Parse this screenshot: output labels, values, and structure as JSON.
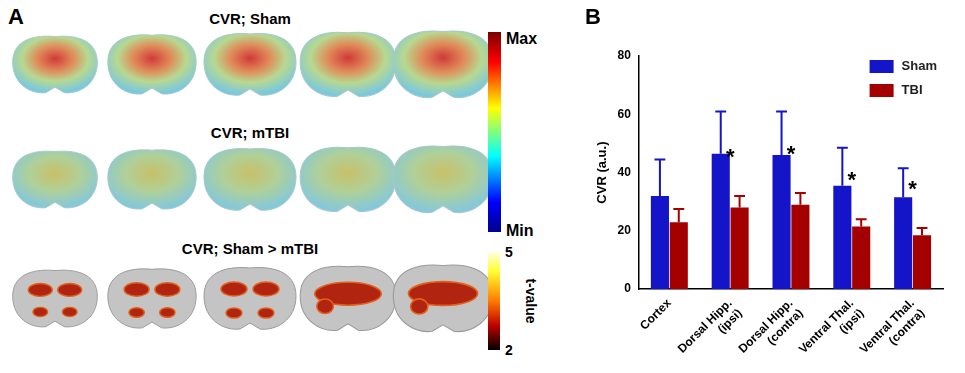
{
  "panel_a": {
    "label": "A",
    "rows": [
      {
        "title": "CVR; Sham"
      },
      {
        "title": "CVR; mTBI"
      },
      {
        "title": "CVR; Sham > mTBI"
      }
    ],
    "colorbar_cvr": {
      "labels": [
        "Max",
        "Min"
      ]
    },
    "colorbar_t": {
      "title": "t-value",
      "range": [
        2,
        5
      ],
      "ticks": [
        2,
        5
      ]
    }
  },
  "chart_data": {
    "type": "bar",
    "label": "B",
    "categories": [
      "Cortex",
      [
        "Dorsal Hipp.",
        "(ipsi)"
      ],
      [
        "Dorsal Hipp.",
        "(contra)"
      ],
      [
        "Ventral Thal.",
        "(ipsi)"
      ],
      [
        "Ventral Thal.",
        "(contra)"
      ]
    ],
    "series": [
      {
        "name": "Sham",
        "color": "#1414c8",
        "values": [
          32,
          46.5,
          46,
          35.5,
          31.5
        ],
        "errors": [
          12.5,
          14.5,
          15,
          13,
          10
        ]
      },
      {
        "name": "TBI",
        "color": "#a50000",
        "values": [
          23,
          28,
          29,
          21.5,
          18.5
        ],
        "errors": [
          4.5,
          4,
          4,
          2.5,
          2.5
        ]
      }
    ],
    "y_label": "CVR (a.u.)",
    "ylim": [
      0,
      80
    ],
    "yticks": [
      0,
      20,
      40,
      60,
      80
    ],
    "grid": false,
    "legend": "upper right",
    "annotations": [
      {
        "text": "*",
        "category": 1
      },
      {
        "text": "*",
        "category": 2
      },
      {
        "text": "*",
        "category": 3
      },
      {
        "text": "*",
        "category": 4
      }
    ]
  }
}
